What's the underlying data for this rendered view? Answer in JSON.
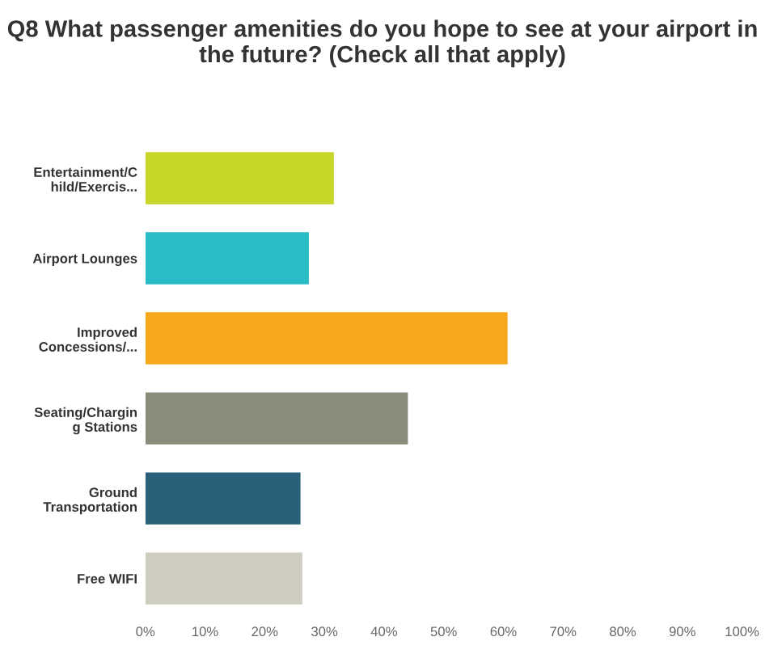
{
  "chart_data": {
    "type": "bar",
    "orientation": "horizontal",
    "title": "Q8 What passenger amenities do you hope to see at your airport in the future? (Check all that apply)",
    "categories": [
      "Entertainment/C\nhild/Exercis...",
      "Airport Lounges",
      "Improved\nConcessions/...",
      "Seating/Chargin\ng Stations",
      "Ground\nTransportation",
      "Free WIFI"
    ],
    "values": [
      31.6,
      27.4,
      60.7,
      44.0,
      26.0,
      26.3
    ],
    "colors": [
      "#c8d62a",
      "#27bcc6",
      "#f5a81c",
      "#8b8b7c",
      "#2a6079",
      "#cfccc0"
    ],
    "xlim": [
      0,
      100
    ],
    "xticks": [
      {
        "value": 0,
        "label": "0%"
      },
      {
        "value": 10,
        "label": "10%"
      },
      {
        "value": 20,
        "label": "20%"
      },
      {
        "value": 30,
        "label": "30%"
      },
      {
        "value": 40,
        "label": "40%"
      },
      {
        "value": 50,
        "label": "50%"
      },
      {
        "value": 60,
        "label": "60%"
      },
      {
        "value": 70,
        "label": "70%"
      },
      {
        "value": 80,
        "label": "80%"
      },
      {
        "value": 90,
        "label": "90%"
      },
      {
        "value": 100,
        "label": "100%"
      }
    ],
    "grid": false,
    "legend": false
  }
}
